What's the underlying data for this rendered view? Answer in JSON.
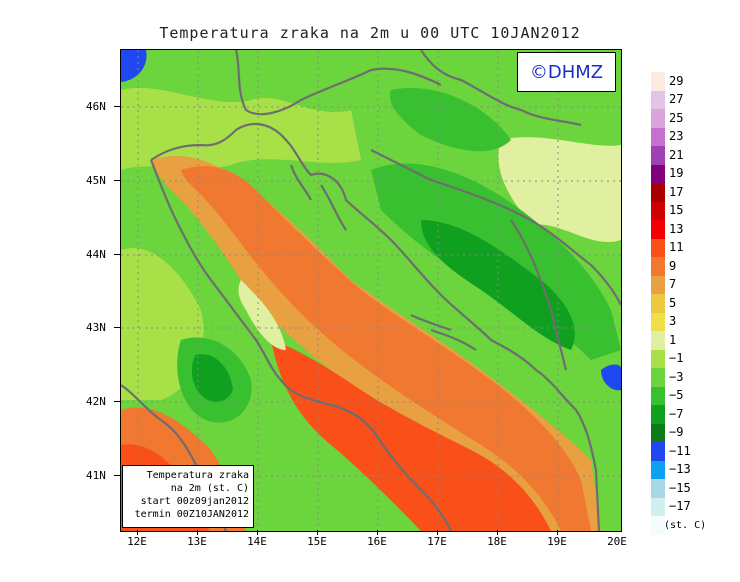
{
  "title": "Temperatura zraka na 2m u 00 UTC 10JAN2012",
  "logo_text": "©DHMZ",
  "info": {
    "line1": "Temperatura zraka",
    "line2": "na 2m (st. C)",
    "line3": "start 00z09jan2012",
    "line4": "termin 00Z10JAN2012"
  },
  "lat_labels": [
    "46N",
    "45N",
    "44N",
    "43N",
    "42N",
    "41N"
  ],
  "lon_labels": [
    "12E",
    "13E",
    "14E",
    "15E",
    "16E",
    "17E",
    "18E",
    "19E",
    "20E"
  ],
  "legend": {
    "unit": "(st. C)",
    "labels": [
      "29",
      "27",
      "25",
      "23",
      "21",
      "19",
      "17",
      "15",
      "13",
      "11",
      "9",
      "7",
      "5",
      "3",
      "1",
      "−1",
      "−3",
      "−5",
      "−7",
      "−9",
      "−11",
      "−13",
      "−15",
      "−17"
    ],
    "colors": [
      "#fcebe0",
      "#e4c4e4",
      "#dca4dc",
      "#c870d0",
      "#a040b8",
      "#800080",
      "#a80000",
      "#d00000",
      "#f00000",
      "#f85018",
      "#f07830",
      "#e8a040",
      "#ecc840",
      "#f0e048",
      "#e0f0a0",
      "#a8e048",
      "#6cd43c",
      "#38c030",
      "#10a020",
      "#0c7c18",
      "#2048f0",
      "#10a0f0",
      "#a8d8e8",
      "#d0f0f0",
      "#f4fcfc"
    ]
  },
  "chart_data": {
    "type": "heatmap",
    "title": "Temperatura zraka na 2m u 00 UTC 10JAN2012",
    "variable": "Temperatura zraka na 2m (st. C)",
    "run_start": "00z09jan2012",
    "valid_time": "00Z10JAN2012",
    "lon_range": [
      11.8,
      20.0
    ],
    "lat_range": [
      40.3,
      46.8
    ],
    "lon_ticks": [
      12,
      13,
      14,
      15,
      16,
      17,
      18,
      19,
      20
    ],
    "lat_ticks": [
      41,
      42,
      43,
      44,
      45,
      46
    ],
    "colorbar_levels": [
      -17,
      -15,
      -13,
      -11,
      -9,
      -7,
      -5,
      -3,
      -1,
      1,
      3,
      5,
      7,
      9,
      11,
      13,
      15,
      17,
      19,
      21,
      23,
      25,
      27,
      29
    ],
    "grid": true,
    "legend_position": "right"
  }
}
